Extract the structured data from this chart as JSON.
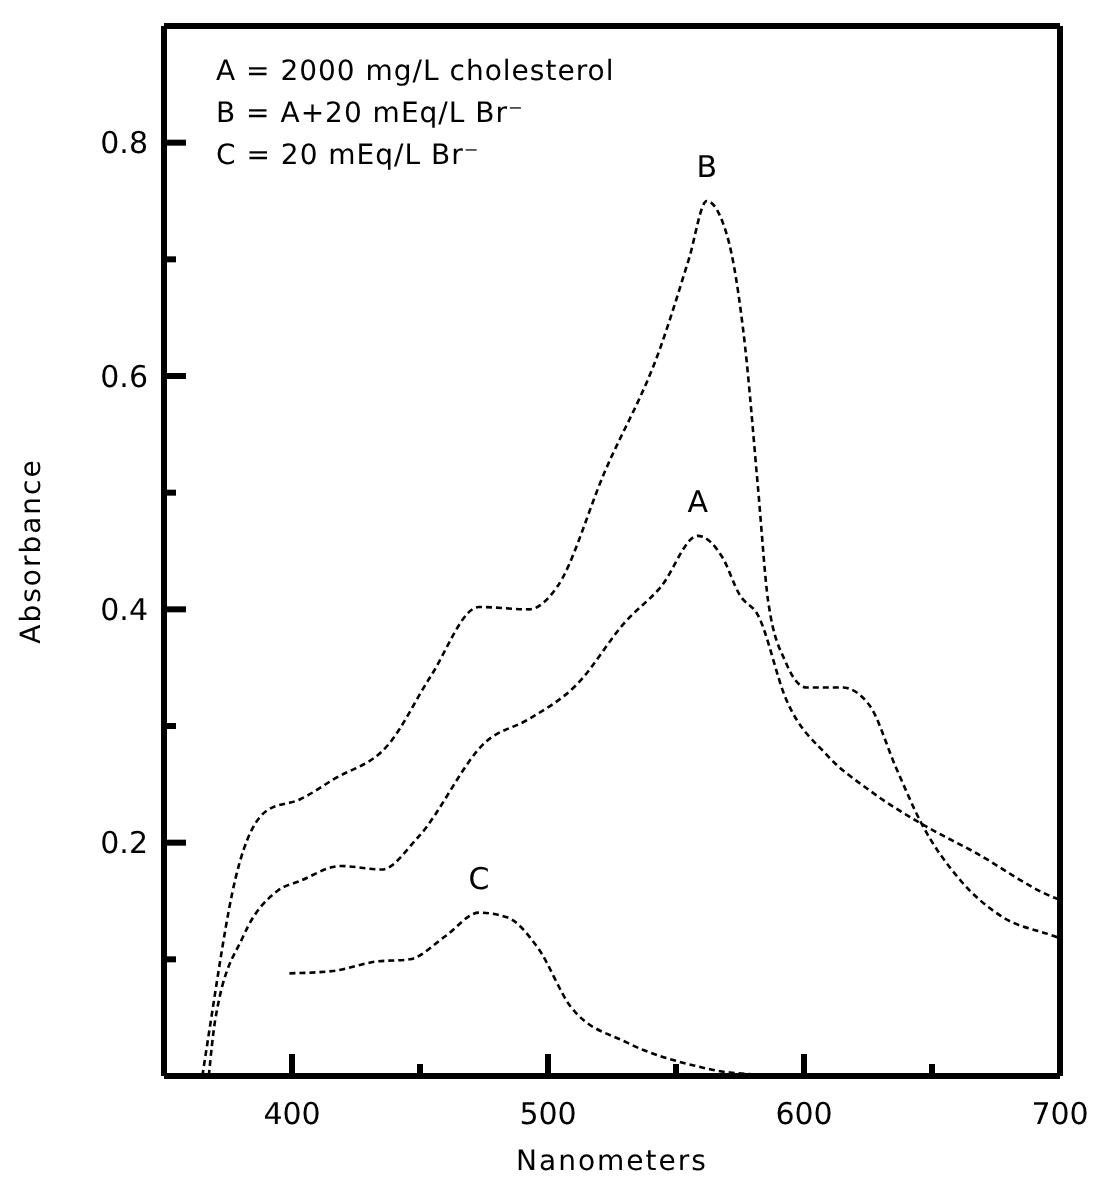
{
  "chart_data": {
    "type": "line",
    "xlabel": "Nanometers",
    "ylabel": "Absorbance",
    "annotations": [
      "A = 2000 mg/L cholesterol",
      "B = A+20 mEq/L Br⁻",
      "C = 20 mEq/L Br⁻"
    ],
    "xlim": [
      350,
      700
    ],
    "ylim": [
      0,
      0.9
    ],
    "xticks": [
      400,
      {
        "value": 450,
        "label": null
      },
      500,
      {
        "value": 550,
        "label": null
      },
      600,
      {
        "value": 650,
        "label": null
      },
      700
    ],
    "yticks": [
      {
        "value": 0.1,
        "label": null
      },
      {
        "value": 0.2,
        "label": "0.2"
      },
      {
        "value": 0.3,
        "label": null
      },
      {
        "value": 0.4,
        "label": "0.4"
      },
      {
        "value": 0.5,
        "label": null
      },
      {
        "value": 0.6,
        "label": "0.6"
      },
      {
        "value": 0.7,
        "label": null
      },
      {
        "value": 0.8,
        "label": "0.8"
      }
    ],
    "grid": false,
    "line_style": "dashed",
    "marker": "none",
    "series": [
      {
        "name": "A",
        "color": "#000000",
        "x": [
          367.5,
          370,
          381,
          394.5,
          403,
          419,
          435,
          449,
          476,
          492.6,
          511,
          530.5,
          544,
          558.5,
          568,
          575,
          582,
          593,
          609,
          625.5,
          646,
          666.5,
          697.6,
          700
        ],
        "values": [
          0,
          0.048,
          0.12,
          0.159,
          0.167,
          0.18,
          0.177,
          0.204,
          0.287,
          0.306,
          0.335,
          0.39,
          0.419,
          0.463,
          0.445,
          0.412,
          0.395,
          0.323,
          0.275,
          0.245,
          0.216,
          0.192,
          0.153,
          0.151
        ]
      },
      {
        "name": "B",
        "color": "#000000",
        "x": [
          365,
          367.5,
          378,
          390.5,
          403,
          416,
          438,
          454,
          473,
          492.6,
          503.5,
          522,
          544,
          555,
          562,
          570,
          577,
          582,
          586,
          593,
          601,
          615,
          625.5,
          636,
          646,
          661,
          677,
          697.6,
          700
        ],
        "values": [
          0,
          0.036,
          0.17,
          0.228,
          0.237,
          0.254,
          0.285,
          0.342,
          0.402,
          0.4,
          0.419,
          0.517,
          0.625,
          0.7,
          0.75,
          0.72,
          0.625,
          0.505,
          0.407,
          0.354,
          0.333,
          0.333,
          0.318,
          0.264,
          0.216,
          0.168,
          0.137,
          0.12,
          0.118
        ]
      },
      {
        "name": "C",
        "color": "#000000",
        "x": [
          399,
          416,
          432.6,
          446,
          460,
          473,
          484,
          496,
          509,
          530.5,
          557,
          571,
          600,
          650,
          700
        ],
        "values": [
          0.088,
          0.09,
          0.098,
          0.1,
          0.12,
          0.14,
          0.136,
          0.11,
          0.059,
          0.029,
          0.009,
          0.003,
          0,
          0,
          0
        ]
      }
    ]
  }
}
